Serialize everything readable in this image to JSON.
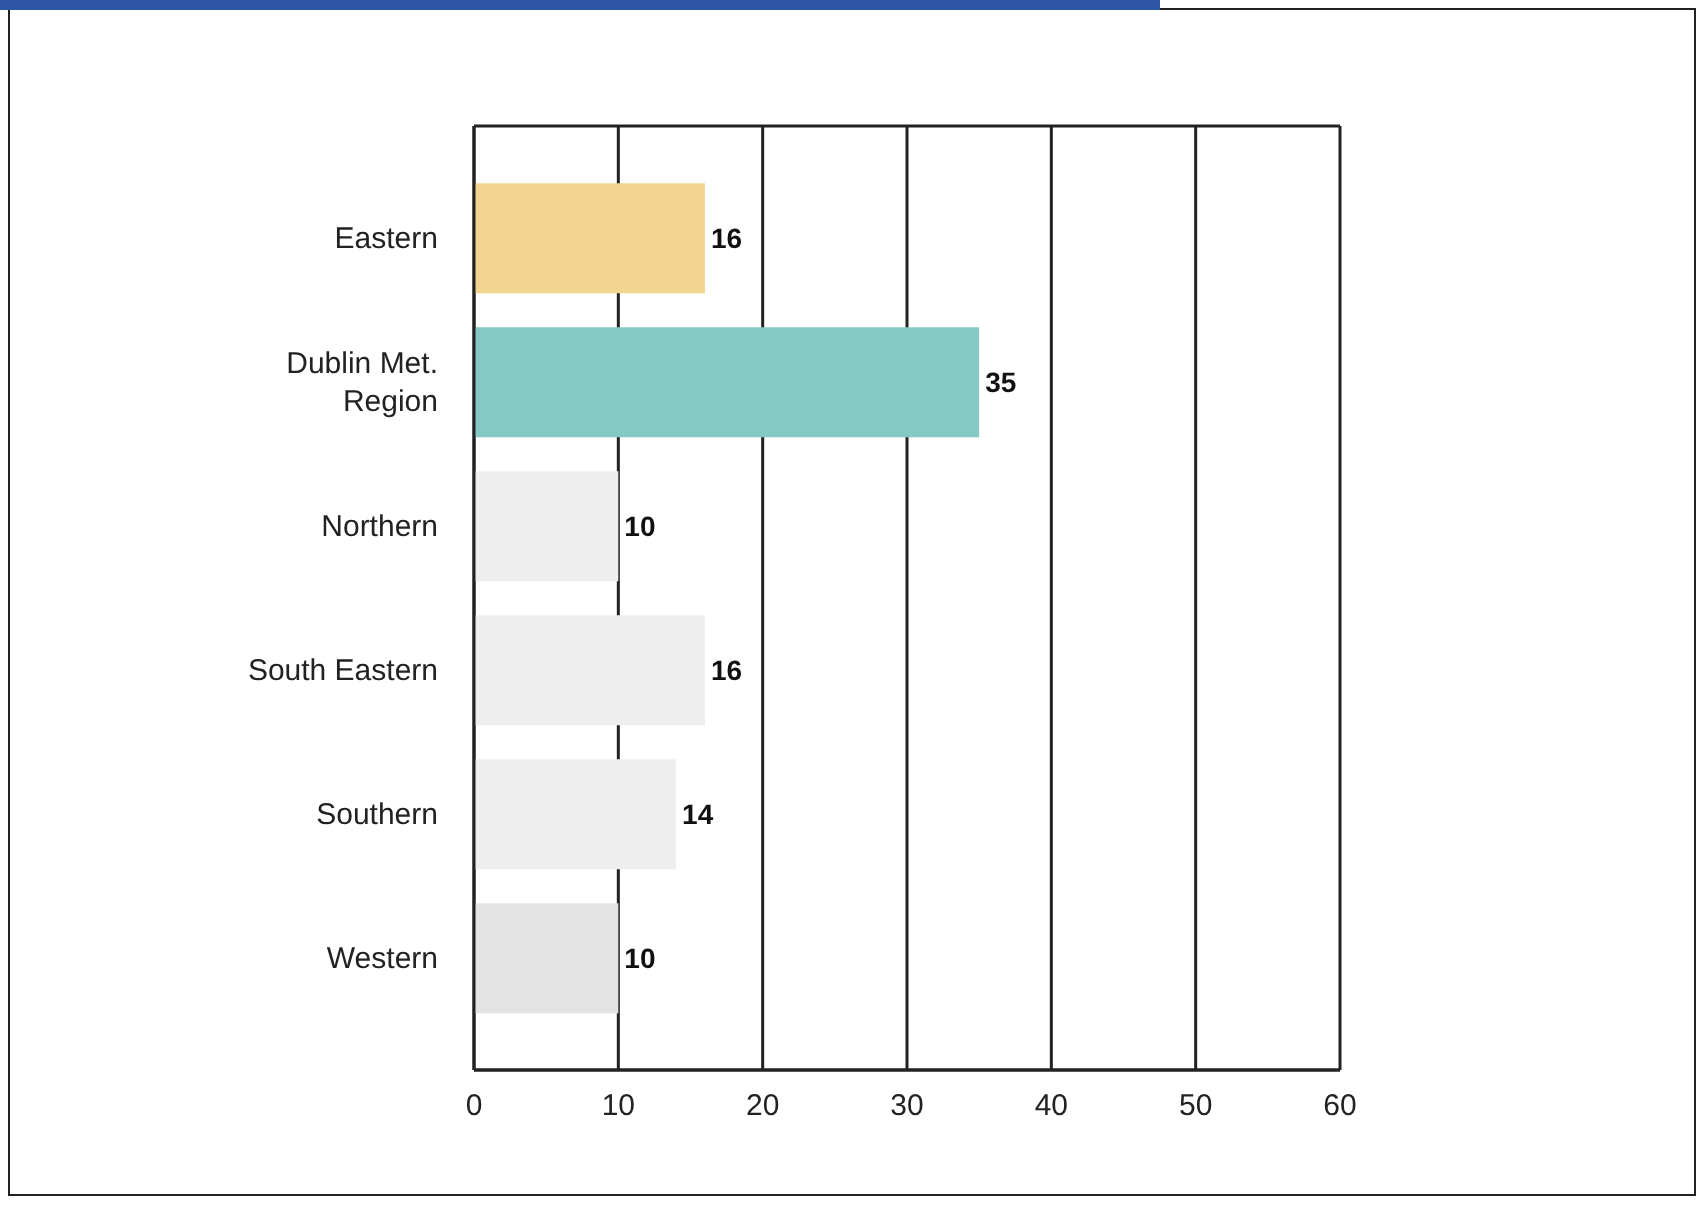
{
  "chart_data": {
    "type": "bar",
    "orientation": "horizontal",
    "categories": [
      "Eastern",
      "Dublin Met.\nRegion",
      "Northern",
      "South Eastern",
      "Southern",
      "Western"
    ],
    "values": [
      16,
      35,
      10,
      16,
      14,
      10
    ],
    "colors": [
      "#f2d48e",
      "#86c8c3",
      "#eeeeee",
      "#eeeeee",
      "#eeeeee",
      "#e3e3e3"
    ],
    "xlim": [
      0,
      60
    ],
    "xticks": [
      0,
      10,
      20,
      30,
      40,
      50,
      60
    ],
    "grid": "x",
    "data_labels": true
  }
}
